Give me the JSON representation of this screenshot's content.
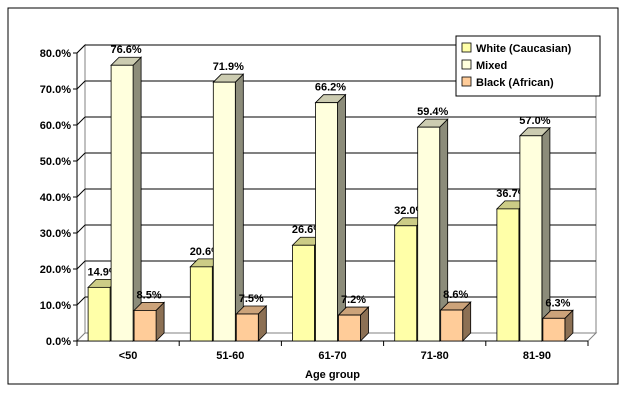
{
  "chart_data": {
    "type": "bar",
    "categories": [
      "<50",
      "51-60",
      "61-70",
      "71-80",
      "81-90"
    ],
    "series": [
      {
        "name": "White (Caucasian)",
        "values": [
          14.9,
          20.6,
          26.6,
          32.0,
          36.7
        ],
        "labels": [
          "14.9%",
          "20.6%",
          "26.6%",
          "32.0%",
          "36.7%"
        ]
      },
      {
        "name": "Mixed",
        "values": [
          76.6,
          71.9,
          66.2,
          59.4,
          57.0
        ],
        "labels": [
          "76.6%",
          "71.9%",
          "66.2%",
          "59.4%",
          "57.0%"
        ]
      },
      {
        "name": "Black (African)",
        "values": [
          8.5,
          7.5,
          7.2,
          8.6,
          6.3
        ],
        "labels": [
          "8.5%",
          "7.5%",
          "7.2%",
          "8.6%",
          "6.3%"
        ]
      }
    ],
    "xlabel": "Age group",
    "ylabel": "",
    "ylim": [
      0,
      80
    ],
    "yticks": [
      0,
      10,
      20,
      30,
      40,
      50,
      60,
      70,
      80
    ],
    "ytick_labels": [
      "0.0%",
      "10.0%",
      "20.0%",
      "30.0%",
      "40.0%",
      "50.0%",
      "60.0%",
      "70.0%",
      "80.0%"
    ],
    "grid": true,
    "legend_position": "top-right",
    "three_d": true,
    "colors": {
      "White (Caucasian)": "#ffffa8",
      "Mixed": "#ffffdd",
      "Black (African)": "#ffcc99"
    }
  }
}
